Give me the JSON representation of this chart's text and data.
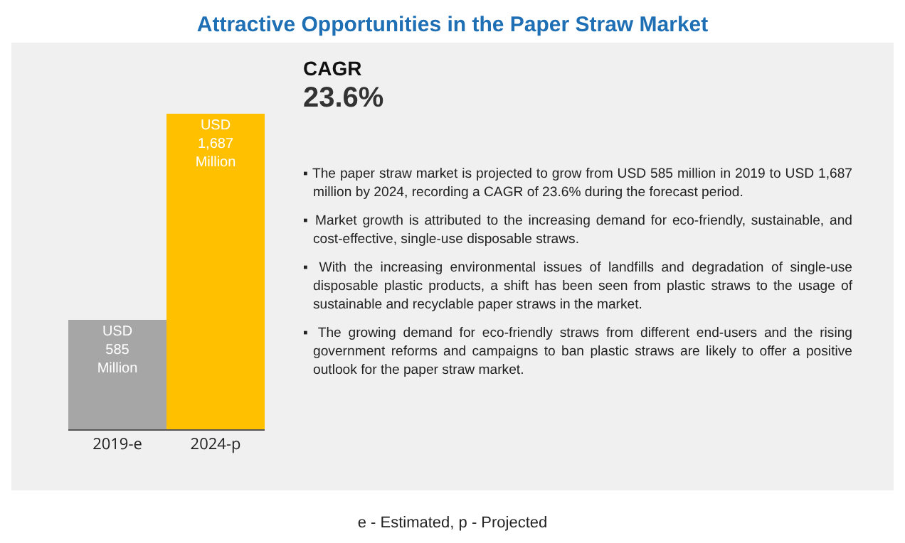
{
  "chart_data": {
    "type": "bar",
    "title": "Attractive Opportunities in the Paper Straw Market",
    "categories": [
      "2019-e",
      "2024-p"
    ],
    "values": [
      585,
      1687
    ],
    "colors": [
      "#a6a6a6",
      "#ffc000"
    ],
    "value_labels": [
      "USD 585 Million",
      "USD 1,687 Million"
    ],
    "annotations": [
      "CAGR",
      "23.6%",
      "▪ The paper straw market is projected to grow from USD 585 million in 2019 to USD 1,687 million by 2024, recording a CAGR of 23.6% during the forecast period.",
      "▪ Market growth is attributed to the increasing demand for eco-friendly, sustainable, and cost-effective, single-use disposable straws.",
      "▪ With the increasing environmental issues of landfills and degradation of single-use disposable plastic products, a shift has been seen from plastic straws to the usage of sustainable and recyclable paper straws in the market.",
      "▪ The growing demand for eco-friendly straws from different end-users and the rising government reforms and campaigns to ban plastic straws are likely to offer a positive outlook for the paper straw market.",
      "e - Estimated, p - Projected"
    ]
  }
}
